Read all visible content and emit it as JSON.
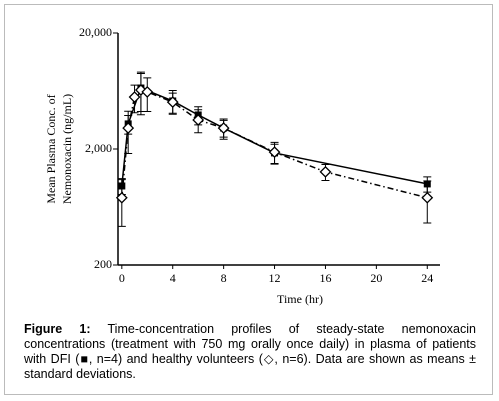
{
  "chart_data": {
    "type": "line",
    "y_label": [
      "Mean Plasma Conc. of",
      "Nemonoxacin (ng/mL)"
    ],
    "x_label": "Time (hr)",
    "xlim": [
      -0.3,
      25
    ],
    "xticks": [
      0,
      4,
      8,
      12,
      16,
      20,
      24
    ],
    "ylim": [
      200,
      20000
    ],
    "log_y": true,
    "yticks": [
      {
        "value": 200,
        "label": "200"
      },
      {
        "value": 2000,
        "label": "2,000"
      },
      {
        "value": 20000,
        "label": "20,000"
      }
    ],
    "series": [
      {
        "marker": "square",
        "dash": "solid",
        "color": "#000000",
        "x": [
          0,
          0.5,
          1.5,
          4,
          6,
          8,
          12,
          24
        ],
        "values": [
          960,
          3290,
          6710,
          5190,
          3930,
          3030,
          1850,
          1000
        ],
        "errors": [
          150,
          600,
          2500,
          1200,
          700,
          500,
          350,
          150
        ]
      },
      {
        "marker": "diamond",
        "dash": "dashdot",
        "color": "#000000",
        "x": [
          0,
          0.5,
          1,
          1.5,
          2,
          4,
          6,
          8,
          12,
          16,
          24
        ],
        "values": [
          760,
          3030,
          5610,
          6450,
          6210,
          5070,
          3560,
          3030,
          1880,
          1270,
          760
        ],
        "errors": [
          330,
          1200,
          1500,
          2500,
          2000,
          1000,
          800,
          600,
          400,
          200,
          300
        ]
      }
    ]
  },
  "caption": {
    "label": "Figure 1:",
    "text": "Time-concentration profiles of steady-state nemonoxacin concentrations (treatment with 750 mg orally once daily) in plasma of patients with DFI (■, n=4) and healthy volunteers (◇, n=6). Data are shown as means ± standard deviations."
  }
}
